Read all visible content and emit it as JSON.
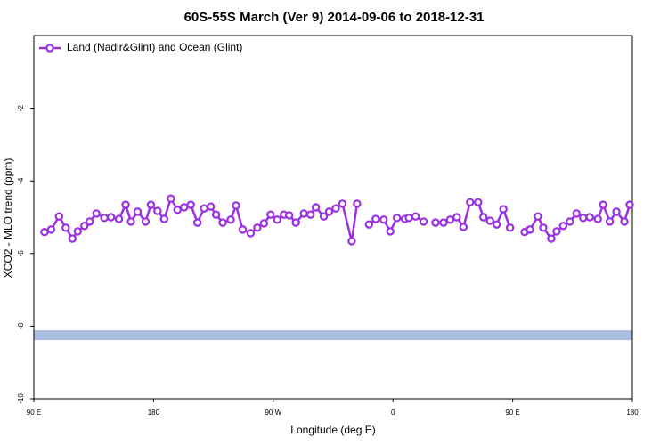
{
  "chart_data": {
    "type": "line",
    "title": "60S-55S March (Ver 9)   2014-09-06 to 2018-12-31",
    "x_label": "Longitude (deg E)",
    "y_label": "XCO2 - MLO trend (ppm)",
    "xlim": [
      90,
      540
    ],
    "ylim": [
      -10,
      0
    ],
    "xticks": [
      {
        "value": 90,
        "label": "90 E"
      },
      180,
      {
        "value": 270,
        "label": "90 W"
      },
      {
        "value": 360,
        "label": "0"
      },
      {
        "value": 450,
        "label": "90 E"
      },
      {
        "value": 540,
        "label": "180"
      }
    ],
    "yticks": [
      -10,
      -8,
      -6,
      -4,
      -2
    ],
    "legend_position": "upper left",
    "band": {
      "value": -8.25,
      "color": "#a8bddf"
    },
    "series": [
      {
        "name": "Land (Nadir&Glint) and Ocean (Glint)",
        "color": "#9b30e0",
        "x": [
          98,
          103,
          109,
          114,
          119,
          123,
          128,
          132,
          137,
          143,
          148,
          154,
          159,
          163,
          168,
          174,
          178,
          183,
          188,
          193,
          198,
          203,
          208,
          213,
          218,
          223,
          227,
          232,
          238,
          242,
          247,
          253,
          258,
          263,
          268,
          273,
          278,
          282,
          287,
          293,
          298,
          302,
          308,
          312,
          317,
          322,
          329,
          333,
          337,
          342,
          347,
          353,
          358,
          363,
          369,
          372,
          377,
          383,
          387,
          392,
          398,
          403,
          408,
          413,
          418,
          424,
          428,
          433,
          438,
          443,
          448,
          453,
          459,
          463,
          469,
          473,
          479,
          483,
          488,
          493,
          498,
          503,
          508,
          514,
          518,
          523,
          528,
          534,
          538
        ],
        "values": [
          -5.41,
          -5.34,
          -4.98,
          -5.29,
          -5.59,
          -5.39,
          -5.24,
          -5.12,
          -4.9,
          -5.02,
          -5.0,
          -5.05,
          -4.66,
          -5.12,
          -4.85,
          -5.12,
          -4.66,
          -4.83,
          -5.05,
          -4.49,
          -4.8,
          -4.73,
          -4.66,
          -5.15,
          -4.76,
          -4.71,
          -4.93,
          -5.15,
          -5.07,
          -4.68,
          -5.34,
          -5.44,
          -5.29,
          -5.17,
          -4.93,
          -5.07,
          -4.93,
          -4.95,
          -5.15,
          -4.9,
          -4.93,
          -4.73,
          -4.98,
          -4.85,
          -4.76,
          -4.63,
          -5.66,
          -4.63,
          null,
          -5.2,
          -5.05,
          -5.07,
          -5.39,
          -5.02,
          -5.05,
          -5.02,
          -4.98,
          -5.12,
          null,
          -5.15,
          -5.15,
          -5.07,
          -5.0,
          -5.27,
          -4.59,
          -4.59,
          -5.0,
          -5.1,
          -5.2,
          -4.78,
          -5.29,
          null,
          -5.41,
          -5.34,
          -4.98,
          -5.29,
          -5.59,
          -5.39,
          -5.24,
          -5.12,
          -4.9,
          -5.02,
          -5.0,
          -5.05,
          -4.66,
          -5.12,
          -4.85,
          -5.12,
          -4.66
        ]
      }
    ]
  }
}
